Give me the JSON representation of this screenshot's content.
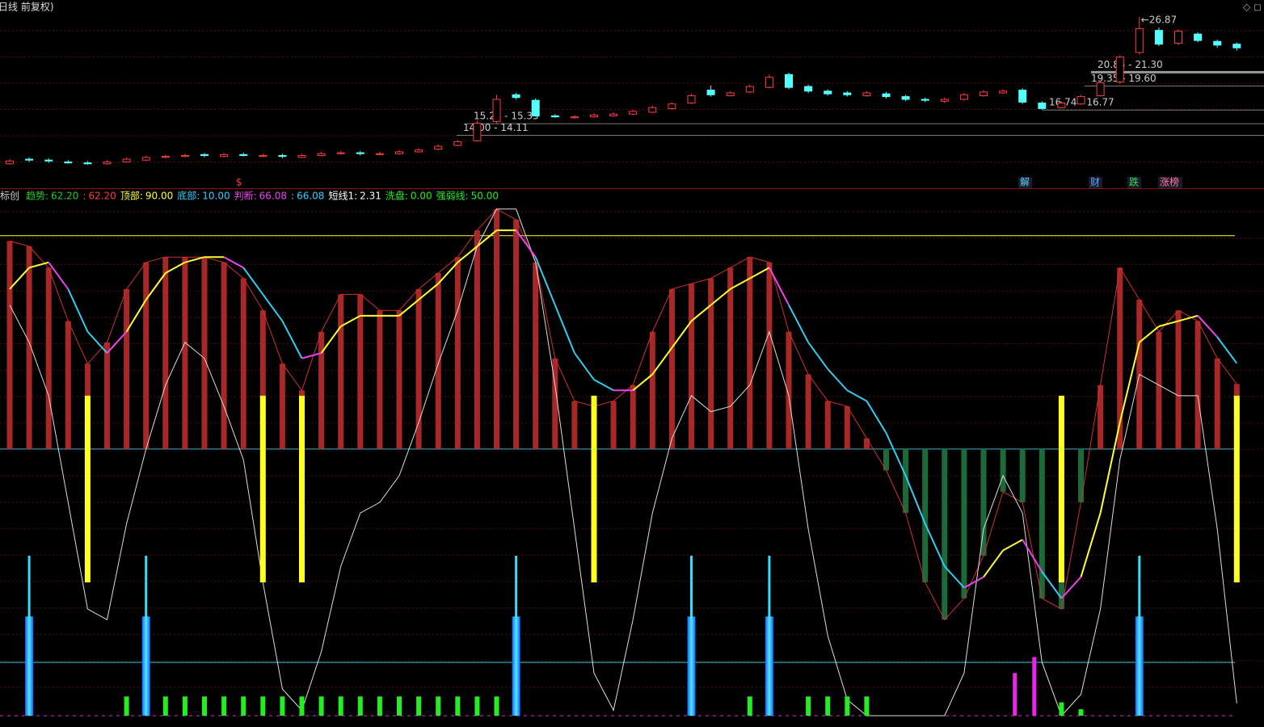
{
  "chart_data": [
    {
      "type": "candlestick",
      "title": "日线 前复权)",
      "marker": "$",
      "badges": [
        {
          "text": "解",
          "color": "#54d8ff"
        },
        {
          "text": "财",
          "color": "#5aa8ff"
        },
        {
          "text": "跌",
          "color": "#33dd55"
        },
        {
          "text": "涨榜",
          "color": "#ff7799"
        }
      ],
      "up_color": "#ff3c3c",
      "down_color": "#54ffff",
      "ylim": [
        10,
        28.7
      ],
      "open": [
        10.9,
        11.4,
        11.3,
        11.1,
        11.0,
        10.9,
        11.1,
        11.3,
        11.6,
        11.7,
        11.9,
        11.7,
        11.9,
        11.7,
        11.8,
        11.6,
        11.8,
        12.0,
        12.1,
        11.9,
        12.0,
        12.2,
        12.5,
        12.9,
        13.4,
        15.5,
        18.4,
        17.8,
        16.1,
        15.9,
        16.0,
        16.1,
        16.3,
        16.5,
        16.9,
        17.5,
        18.9,
        18.3,
        18.7,
        19.2,
        20.6,
        19.3,
        18.8,
        18.6,
        18.3,
        18.5,
        18.2,
        17.9,
        17.7,
        17.9,
        18.3,
        18.6,
        18.9,
        17.5,
        17.0,
        17.4,
        18.3,
        19.8,
        23.0,
        25.4,
        24.0,
        25.0,
        24.2,
        23.9
      ],
      "high": [
        11.4,
        11.6,
        11.5,
        11.3,
        11.2,
        11.3,
        11.6,
        11.8,
        11.9,
        12.0,
        12.1,
        12.1,
        12.1,
        12.0,
        12.0,
        12.0,
        12.2,
        12.3,
        12.3,
        12.2,
        12.4,
        12.6,
        13.0,
        13.5,
        15.6,
        18.4,
        18.6,
        18.0,
        16.3,
        16.2,
        16.4,
        16.5,
        16.8,
        17.2,
        17.6,
        18.5,
        19.4,
        18.8,
        19.5,
        20.6,
        20.8,
        19.5,
        19.0,
        18.8,
        18.8,
        18.7,
        18.4,
        18.1,
        18.1,
        18.6,
        18.9,
        19.0,
        19.1,
        17.7,
        17.7,
        18.4,
        19.9,
        22.7,
        26.87,
        25.7,
        25.5,
        25.2,
        24.4,
        24.1
      ],
      "low": [
        10.8,
        11.1,
        11.0,
        10.9,
        10.8,
        10.8,
        11.0,
        11.2,
        11.5,
        11.6,
        11.6,
        11.6,
        11.7,
        11.6,
        11.5,
        11.5,
        11.7,
        11.9,
        11.8,
        11.8,
        11.9,
        12.1,
        12.4,
        12.8,
        13.3,
        15.3,
        17.9,
        16.0,
        15.9,
        15.8,
        15.9,
        16.0,
        16.2,
        16.4,
        16.8,
        17.4,
        18.2,
        18.2,
        18.6,
        19.1,
        19.0,
        18.6,
        18.3,
        18.2,
        18.2,
        18.0,
        17.7,
        17.6,
        17.5,
        17.8,
        18.2,
        18.5,
        17.4,
        16.74,
        16.9,
        17.3,
        18.2,
        19.6,
        22.8,
        23.7,
        23.8,
        24.1,
        23.5,
        23.2
      ],
      "close": [
        11.2,
        11.3,
        11.2,
        11.0,
        10.9,
        11.1,
        11.4,
        11.6,
        11.7,
        11.8,
        11.8,
        11.9,
        11.8,
        11.8,
        11.7,
        11.8,
        12.0,
        12.1,
        12.0,
        12.0,
        12.2,
        12.4,
        12.8,
        13.3,
        15.3,
        17.9,
        18.1,
        16.1,
        16.0,
        16.0,
        16.2,
        16.3,
        16.6,
        17.0,
        17.4,
        18.3,
        18.4,
        18.6,
        19.3,
        20.3,
        19.2,
        18.8,
        18.5,
        18.4,
        18.6,
        18.2,
        17.9,
        17.8,
        17.9,
        18.4,
        18.7,
        18.8,
        17.6,
        16.9,
        17.5,
        18.2,
        19.7,
        22.5,
        25.6,
        23.9,
        25.3,
        24.3,
        23.8,
        23.5
      ],
      "peak_label": 26.87,
      "levels": [
        {
          "label": "20.85 - 21.30",
          "value": 20.85
        },
        {
          "label": "19.35 - 19.60",
          "value": 19.35
        },
        {
          "label": "16.74 - 16.77",
          "value": 16.74
        },
        {
          "label": "15.26 - 15.35",
          "value": 15.26
        },
        {
          "label": "14.00 - 14.11",
          "value": 14.0
        }
      ]
    },
    {
      "type": "indicator",
      "title": "指标创",
      "ylim": [
        0,
        98.6
      ],
      "legend": [
        {
          "name": "趋势:",
          "value": 62.2,
          "value_label": "62.20",
          "color": "#22cc22"
        },
        {
          "name": ":",
          "value": 62.2,
          "value_label": "62.20",
          "color": "#ff3c3c"
        },
        {
          "name": "顶部:",
          "value": 90,
          "value_label": "90.00",
          "color": "#ffff33"
        },
        {
          "name": "底部:",
          "value": 10,
          "value_label": "10.00",
          "color": "#33ccff"
        },
        {
          "name": "判断:",
          "value": 66.08,
          "value_label": "66.08",
          "color": "#ee44ee"
        },
        {
          "name": ":",
          "value": 66.08,
          "value_label": "66.08",
          "color": "#33ccff"
        },
        {
          "name": "短线1:",
          "value": 2.31,
          "value_label": "2.31",
          "color": "#ffffff"
        },
        {
          "name": "洗盘:",
          "value": 0,
          "value_label": "0.00",
          "color": "#22ee22"
        },
        {
          "name": "强弱线:",
          "value": 50,
          "value_label": "50.00",
          "color": "#22ee22"
        }
      ],
      "bars": [
        89,
        88,
        84,
        74,
        66,
        70,
        80,
        85,
        86,
        86,
        86,
        85,
        82,
        76,
        66,
        61,
        72,
        79,
        79,
        76,
        76,
        80,
        83,
        86,
        91,
        95,
        93,
        85,
        67,
        59,
        58,
        59,
        62,
        72,
        80,
        81,
        82,
        84,
        86,
        85,
        72,
        64,
        59,
        58,
        52,
        46,
        38,
        25,
        18,
        22,
        30,
        42,
        40,
        22,
        20,
        40,
        62,
        84,
        78,
        72,
        76,
        74,
        67,
        62.2
      ],
      "trend": [
        80,
        84,
        85,
        80,
        72,
        68,
        72,
        78,
        83,
        85,
        86,
        86,
        84,
        79,
        74,
        67,
        68,
        73,
        75,
        75,
        75,
        78,
        81,
        85,
        88,
        91,
        91,
        86,
        77,
        68,
        63,
        61,
        61,
        64,
        69,
        74,
        77,
        80,
        82,
        84,
        77,
        70,
        65,
        61,
        59,
        53,
        45,
        36,
        28,
        24,
        26,
        31,
        33,
        27,
        22,
        26,
        38,
        55,
        70,
        73,
        74,
        75,
        71,
        66.08
      ],
      "short_line": [
        77,
        70,
        60,
        40,
        20,
        18,
        36,
        50,
        62,
        70,
        67,
        58,
        48,
        25,
        5,
        1,
        12,
        28,
        38,
        40,
        45,
        55,
        66,
        76,
        88,
        95,
        95,
        85,
        62,
        35,
        8,
        1,
        18,
        38,
        52,
        60,
        57,
        58,
        62,
        72,
        60,
        35,
        15,
        3,
        0,
        0,
        0,
        0,
        0,
        8,
        35,
        45,
        38,
        10,
        0,
        4,
        20,
        48,
        64,
        62,
        60,
        60,
        35,
        2.31
      ],
      "signal_high": [
        null,
        null,
        null,
        null,
        60,
        null,
        null,
        null,
        null,
        null,
        null,
        null,
        null,
        60,
        null,
        60,
        null,
        null,
        null,
        null,
        null,
        null,
        null,
        null,
        null,
        null,
        null,
        null,
        null,
        null,
        60,
        null,
        null,
        null,
        null,
        null,
        null,
        null,
        null,
        null,
        null,
        null,
        null,
        null,
        null,
        null,
        null,
        null,
        null,
        null,
        null,
        null,
        null,
        null,
        60,
        null,
        null,
        null,
        null,
        null,
        null,
        null,
        null,
        60
      ],
      "signal_low": [
        null,
        null,
        null,
        null,
        25,
        null,
        null,
        null,
        null,
        null,
        null,
        null,
        null,
        25,
        null,
        25,
        null,
        null,
        null,
        null,
        null,
        null,
        null,
        null,
        null,
        null,
        null,
        null,
        null,
        null,
        25,
        null,
        null,
        null,
        null,
        null,
        null,
        null,
        null,
        null,
        null,
        null,
        null,
        null,
        null,
        null,
        null,
        null,
        null,
        null,
        null,
        null,
        null,
        null,
        25,
        null,
        null,
        null,
        null,
        null,
        null,
        null,
        null,
        25
      ],
      "spikes": [
        null,
        30,
        null,
        null,
        null,
        null,
        null,
        30,
        null,
        null,
        null,
        null,
        null,
        null,
        null,
        null,
        null,
        null,
        null,
        null,
        null,
        null,
        null,
        null,
        null,
        null,
        30,
        null,
        null,
        null,
        null,
        null,
        null,
        null,
        null,
        30,
        null,
        null,
        null,
        30,
        null,
        null,
        null,
        null,
        null,
        null,
        null,
        null,
        null,
        null,
        null,
        null,
        null,
        null,
        null,
        null,
        null,
        null,
        30,
        null,
        null,
        null,
        null,
        null
      ],
      "washout": [
        null,
        null,
        null,
        null,
        null,
        null,
        3.6,
        3.6,
        3.6,
        3.6,
        3.6,
        3.6,
        3.6,
        3.6,
        3.6,
        3.6,
        3.6,
        3.6,
        3.6,
        3.6,
        3.6,
        3.6,
        3.6,
        3.6,
        3.6,
        3.6,
        3.6,
        null,
        null,
        null,
        null,
        null,
        null,
        null,
        null,
        null,
        null,
        null,
        3.6,
        3.6,
        null,
        3.6,
        3.6,
        3.6,
        3.6,
        null,
        null,
        null,
        null,
        null,
        null,
        null,
        null,
        null,
        2.5,
        1.2,
        null,
        null,
        null,
        null,
        null,
        null,
        null,
        null
      ],
      "pulse": [
        null,
        null,
        null,
        null,
        null,
        null,
        null,
        null,
        null,
        null,
        null,
        null,
        null,
        null,
        null,
        null,
        null,
        null,
        null,
        null,
        null,
        null,
        null,
        null,
        null,
        null,
        null,
        null,
        null,
        null,
        null,
        null,
        null,
        null,
        null,
        null,
        null,
        null,
        null,
        null,
        null,
        null,
        null,
        null,
        null,
        null,
        null,
        null,
        null,
        null,
        null,
        null,
        8,
        11,
        null,
        null,
        null,
        null,
        null,
        null,
        null,
        null,
        null,
        null
      ]
    }
  ]
}
